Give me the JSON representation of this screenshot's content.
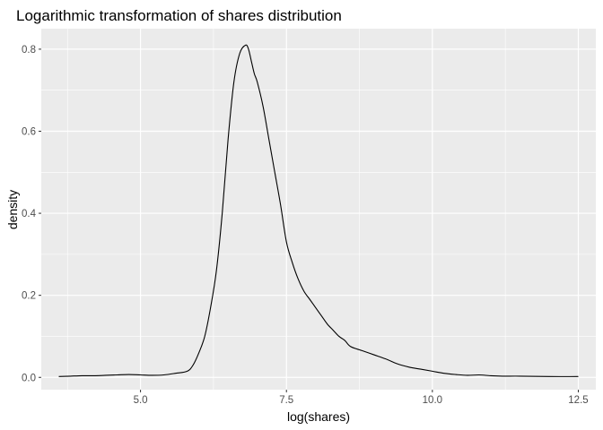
{
  "chart_data": {
    "type": "line",
    "title": "Logarithmic transformation of shares distribution",
    "xlabel": "log(shares)",
    "ylabel": "density",
    "xlim": [
      3.3,
      12.8
    ],
    "ylim": [
      -0.03,
      0.85
    ],
    "x_ticks": [
      5.0,
      7.5,
      10.0,
      12.5
    ],
    "x_tick_labels": [
      "5.0",
      "7.5",
      "10.0",
      "12.5"
    ],
    "x_minor_ticks": [
      3.75,
      6.25,
      8.75,
      11.25
    ],
    "y_ticks": [
      0.0,
      0.2,
      0.4,
      0.6,
      0.8
    ],
    "y_tick_labels": [
      "0.0",
      "0.2",
      "0.4",
      "0.6",
      "0.8"
    ],
    "y_minor_ticks": [
      0.1,
      0.3,
      0.5,
      0.7
    ],
    "grid": true,
    "panel_background": "#ebebeb",
    "grid_color": "#ffffff",
    "line_color": "#000000",
    "series": [
      {
        "x": [
          3.6,
          3.8,
          4.0,
          4.2,
          4.4,
          4.6,
          4.8,
          5.0,
          5.2,
          5.4,
          5.6,
          5.8,
          5.9,
          6.0,
          6.1,
          6.2,
          6.3,
          6.4,
          6.5,
          6.6,
          6.7,
          6.8,
          6.85,
          6.9,
          6.95,
          7.0,
          7.1,
          7.2,
          7.3,
          7.4,
          7.5,
          7.6,
          7.7,
          7.8,
          7.9,
          8.0,
          8.1,
          8.2,
          8.3,
          8.4,
          8.5,
          8.6,
          8.8,
          9.0,
          9.2,
          9.4,
          9.6,
          9.8,
          10.0,
          10.2,
          10.4,
          10.6,
          10.8,
          11.0,
          11.2,
          11.5,
          12.0,
          12.5
        ],
        "y": [
          0.002,
          0.003,
          0.004,
          0.004,
          0.005,
          0.006,
          0.007,
          0.006,
          0.005,
          0.006,
          0.01,
          0.015,
          0.03,
          0.06,
          0.1,
          0.17,
          0.26,
          0.4,
          0.58,
          0.72,
          0.79,
          0.81,
          0.8,
          0.77,
          0.74,
          0.72,
          0.66,
          0.58,
          0.5,
          0.42,
          0.33,
          0.28,
          0.24,
          0.21,
          0.19,
          0.17,
          0.15,
          0.13,
          0.115,
          0.1,
          0.09,
          0.075,
          0.065,
          0.055,
          0.045,
          0.033,
          0.025,
          0.02,
          0.015,
          0.01,
          0.007,
          0.005,
          0.006,
          0.004,
          0.003,
          0.003,
          0.002,
          0.002
        ]
      }
    ]
  }
}
